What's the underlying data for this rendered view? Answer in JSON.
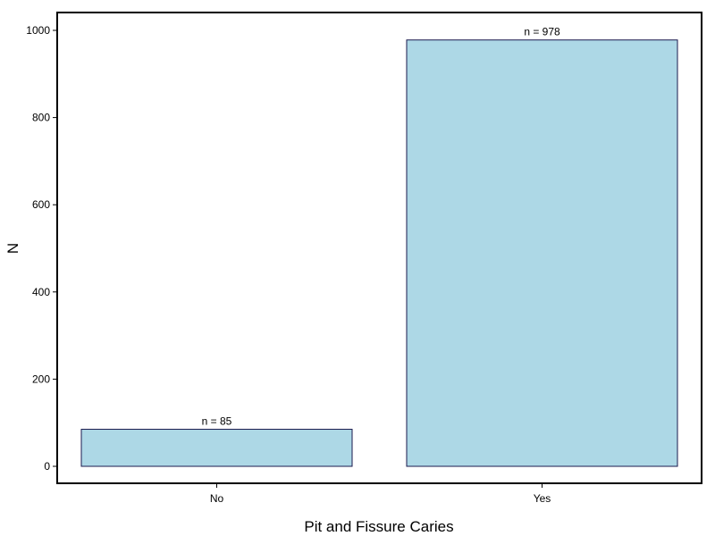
{
  "chart_data": {
    "type": "bar",
    "categories": [
      "No",
      "Yes"
    ],
    "values": [
      85,
      978
    ],
    "data_labels": [
      "n =  85",
      "n =  978"
    ],
    "xlabel": "Pit and Fissure Caries",
    "ylabel": "N",
    "ylim": [
      0,
      1000
    ],
    "yticks": [
      0,
      200,
      400,
      600,
      800,
      1000
    ],
    "grid": false,
    "bar_fill": "#add8e6",
    "bar_stroke": "#1a1a4e"
  }
}
